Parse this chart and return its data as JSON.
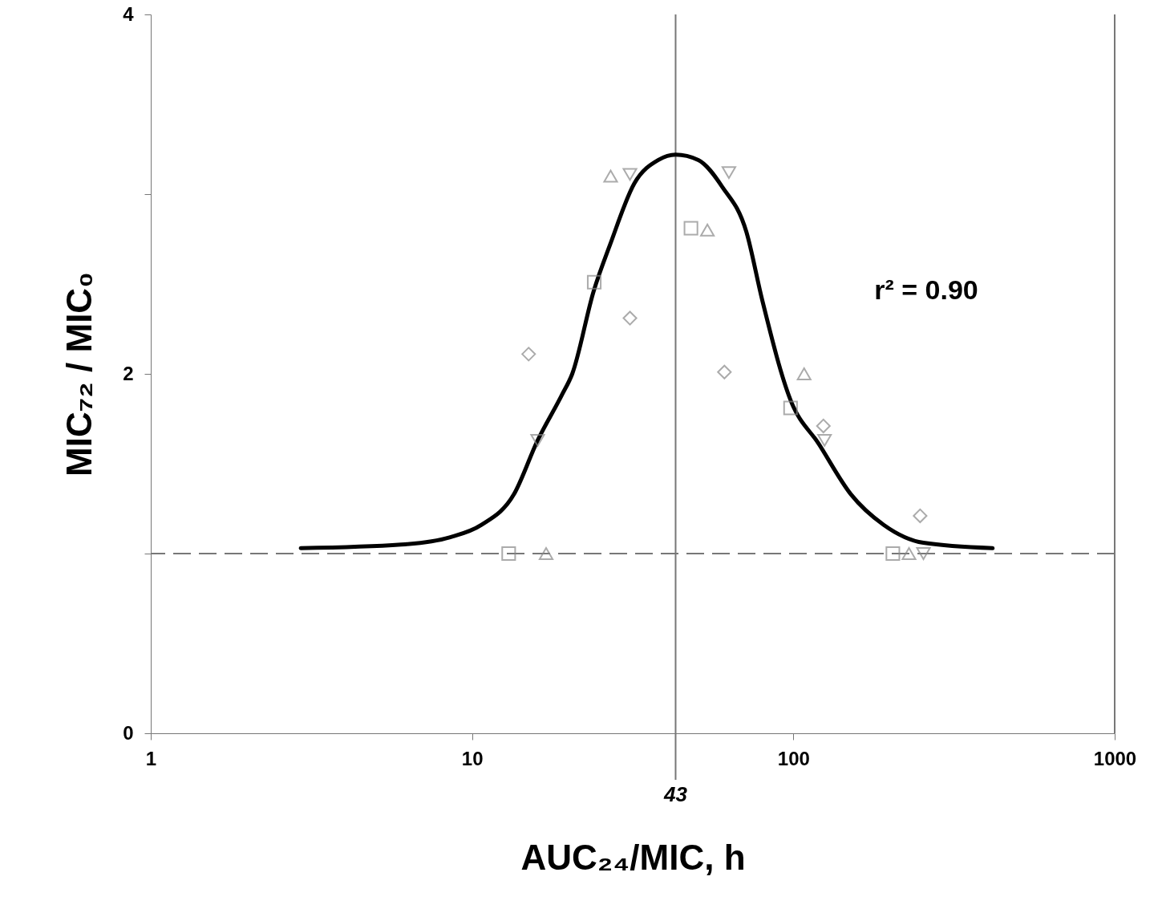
{
  "chart_data": {
    "type": "scatter",
    "xlabel": "AUC₂₄/MIC, h",
    "ylabel": "MIC₇₂ / MIC₀",
    "log": "x",
    "xlim": [
      1,
      1000
    ],
    "xticks": [
      1,
      10,
      100,
      1000
    ],
    "ylim": [
      0,
      4
    ],
    "yticks": [
      0,
      {
        "value": 1,
        "label": null
      },
      2,
      {
        "value": 3,
        "label": null
      },
      4
    ],
    "grid": false,
    "series": [
      {
        "marker": "square",
        "color": "#888888",
        "x": [
          13,
          24,
          48,
          98,
          204
        ],
        "values": [
          1.0,
          2.51,
          2.81,
          1.81,
          1.0
        ]
      },
      {
        "marker": "triangle",
        "color": "#888888",
        "x": [
          17,
          27,
          54,
          108,
          229
        ],
        "values": [
          1.0,
          3.1,
          2.8,
          2.0,
          1.0
        ]
      },
      {
        "marker": "triangle-down",
        "color": "#888888",
        "x": [
          16,
          31,
          63,
          125,
          254
        ],
        "values": [
          1.63,
          3.11,
          3.12,
          1.63,
          1.0
        ]
      },
      {
        "marker": "diamond",
        "color": "#888888",
        "x": [
          15,
          31,
          61,
          124,
          248
        ],
        "values": [
          2.11,
          2.31,
          2.01,
          1.71,
          1.21
        ]
      },
      {
        "type": "line",
        "marker": "none",
        "line_style": "solid",
        "color": "#000000",
        "x": [
          2.93,
          6.02,
          8.51,
          10.7,
          13.5,
          16,
          19,
          20.5,
          23.9,
          26.9,
          32,
          38,
          43,
          50.6,
          60.1,
          71.4,
          80,
          98.2,
          120,
          151,
          191,
          254,
          417
        ],
        "values": [
          1.03,
          1.05,
          1.09,
          1.16,
          1.33,
          1.63,
          1.88,
          2.0,
          2.46,
          2.72,
          3.06,
          3.19,
          3.22,
          3.19,
          3.04,
          2.79,
          2.41,
          1.85,
          1.61,
          1.33,
          1.16,
          1.06,
          1.03
        ]
      }
    ],
    "ref_lines": [
      {
        "axis": "x",
        "value": 43,
        "label": "43",
        "color": "#777777",
        "line_style": "solid"
      },
      {
        "axis": "y",
        "value": 1,
        "color": "#777777",
        "line_style": "dashed"
      }
    ],
    "annotations": [
      "r² = 0.90"
    ]
  }
}
